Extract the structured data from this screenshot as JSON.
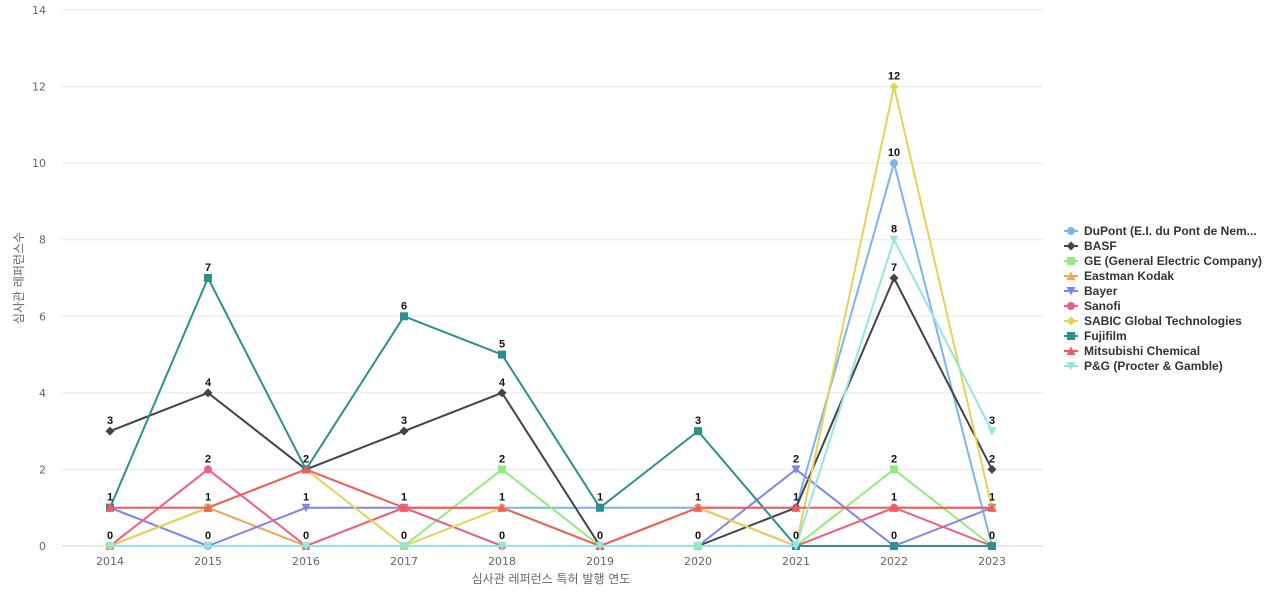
{
  "chart_data": {
    "type": "line",
    "title": "",
    "xlabel": "심사관 레퍼런스 특허 발행 연도",
    "ylabel": "심사관 레퍼런스수",
    "x": [
      2014,
      2015,
      2016,
      2017,
      2018,
      2019,
      2020,
      2021,
      2022,
      2023
    ],
    "ylim": [
      0,
      14
    ],
    "yticks": [
      0,
      2,
      4,
      6,
      8,
      10,
      12,
      14
    ],
    "grid": true,
    "legend_position": "right",
    "series": [
      {
        "name": "DuPont (E.I. du Pont de Nem...",
        "color": "#7cb5ec",
        "marker": "circle",
        "values": [
          1,
          0,
          0,
          1,
          1,
          1,
          1,
          1,
          10,
          0
        ]
      },
      {
        "name": "BASF",
        "color": "#434348",
        "marker": "diamond",
        "values": [
          3,
          4,
          2,
          3,
          4,
          0,
          0,
          1,
          7,
          2
        ]
      },
      {
        "name": "GE (General Electric Company)",
        "color": "#90ed7d",
        "marker": "square",
        "values": [
          0,
          1,
          0,
          0,
          2,
          0,
          0,
          0,
          2,
          0
        ]
      },
      {
        "name": "Eastman Kodak",
        "color": "#f7a35c",
        "marker": "triangle",
        "values": [
          0,
          1,
          0,
          1,
          1,
          0,
          1,
          0,
          1,
          1
        ]
      },
      {
        "name": "Bayer",
        "color": "#8085e9",
        "marker": "triangle-down",
        "values": [
          1,
          0,
          1,
          1,
          0,
          0,
          0,
          2,
          0,
          1
        ]
      },
      {
        "name": "Sanofi",
        "color": "#f15c80",
        "marker": "circle",
        "values": [
          0,
          2,
          0,
          1,
          0,
          0,
          1,
          0,
          1,
          0
        ]
      },
      {
        "name": "SABIC Global Technologies",
        "color": "#e4d354",
        "marker": "diamond",
        "values": [
          0,
          1,
          2,
          0,
          1,
          0,
          1,
          0,
          12,
          1
        ]
      },
      {
        "name": "Fujifilm",
        "color": "#2b908f",
        "marker": "square",
        "values": [
          1,
          7,
          2,
          6,
          5,
          1,
          3,
          0,
          0,
          0
        ]
      },
      {
        "name": "Mitsubishi Chemical",
        "color": "#f45b5b",
        "marker": "triangle",
        "values": [
          1,
          1,
          2,
          1,
          1,
          0,
          1,
          1,
          1,
          1
        ]
      },
      {
        "name": "P&G (Procter & Gamble)",
        "color": "#91e8e1",
        "marker": "triangle-down",
        "values": [
          0,
          0,
          0,
          0,
          0,
          0,
          0,
          0,
          8,
          3
        ]
      }
    ],
    "data_labels": [
      {
        "x": 2014,
        "values": [
          0,
          1,
          3
        ]
      },
      {
        "x": 2015,
        "values": [
          0,
          1,
          2,
          4,
          7
        ]
      },
      {
        "x": 2016,
        "values": [
          0,
          1,
          2
        ]
      },
      {
        "x": 2017,
        "values": [
          0,
          1,
          3,
          6
        ]
      },
      {
        "x": 2018,
        "values": [
          0,
          1,
          2,
          4,
          5
        ]
      },
      {
        "x": 2019,
        "values": [
          0,
          1
        ]
      },
      {
        "x": 2020,
        "values": [
          0,
          1,
          3
        ]
      },
      {
        "x": 2021,
        "values": [
          0,
          1,
          2
        ]
      },
      {
        "x": 2022,
        "values": [
          0,
          1,
          2,
          7,
          8,
          10,
          12
        ]
      },
      {
        "x": 2023,
        "values": [
          0,
          1,
          2,
          3
        ]
      }
    ]
  }
}
